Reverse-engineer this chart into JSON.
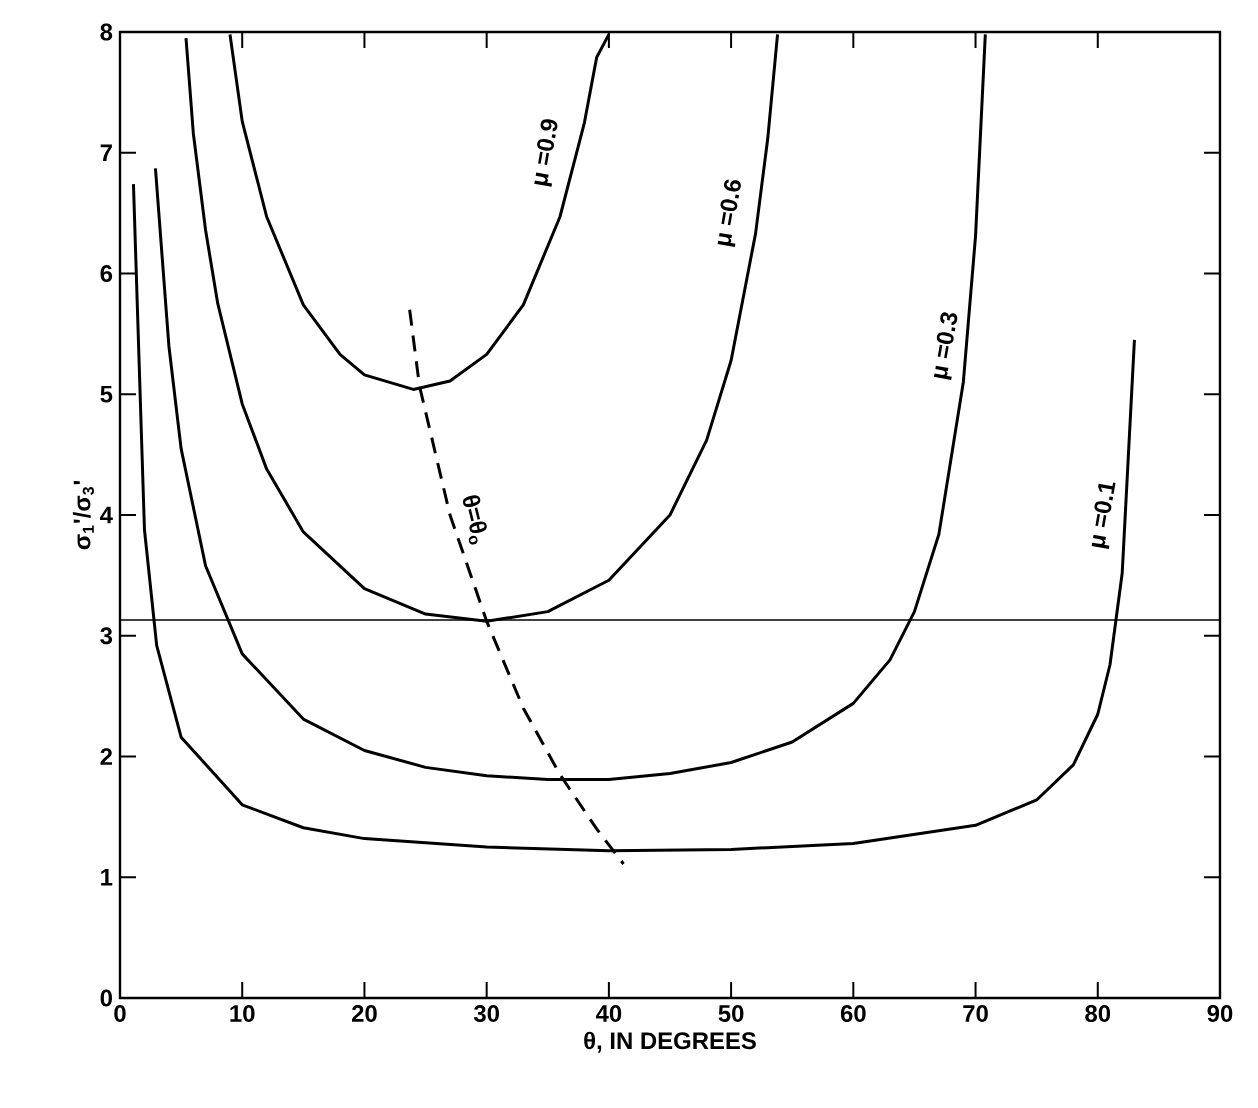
{
  "chart_data": {
    "type": "line",
    "xlabel": "θ, IN DEGREES",
    "ylabel": "σ$_{1}$'/σ$_{3}$'",
    "xlim": [
      0,
      90
    ],
    "ylim": [
      0,
      8
    ],
    "xticks": [
      0,
      10,
      20,
      30,
      40,
      50,
      60,
      70,
      80,
      90
    ],
    "yticks": [
      0,
      1,
      2,
      3,
      4,
      5,
      6,
      7,
      8
    ],
    "series": [
      {
        "color": "#000000",
        "x": [
          1.1,
          2,
          3,
          5,
          10,
          15,
          20,
          30,
          40,
          50,
          60,
          70,
          75,
          78,
          80,
          81,
          82,
          83
        ],
        "values": [
          6.74,
          3.88,
          2.92,
          2.16,
          1.6,
          1.41,
          1.32,
          1.25,
          1.22,
          1.23,
          1.28,
          1.43,
          1.64,
          1.93,
          2.35,
          2.76,
          3.52,
          5.45
        ]
      },
      {
        "color": "#000000",
        "x": [
          2.9,
          4,
          5,
          7,
          10,
          15,
          20,
          25,
          30,
          35,
          40,
          45,
          50,
          55,
          60,
          63,
          65,
          67,
          69,
          70,
          70.8
        ],
        "values": [
          6.87,
          5.4,
          4.55,
          3.58,
          2.85,
          2.31,
          2.05,
          1.91,
          1.84,
          1.81,
          1.81,
          1.86,
          1.95,
          2.12,
          2.44,
          2.8,
          3.2,
          3.84,
          5.1,
          6.31,
          7.98
        ]
      },
      {
        "color": "#000000",
        "x": [
          5.4,
          6,
          7,
          8,
          10,
          12,
          15,
          20,
          25,
          30,
          35,
          40,
          45,
          48,
          50,
          52,
          53,
          53.8
        ],
        "values": [
          7.95,
          7.16,
          6.36,
          5.75,
          4.92,
          4.38,
          3.86,
          3.39,
          3.18,
          3.12,
          3.2,
          3.46,
          4.0,
          4.62,
          5.28,
          6.33,
          7.12,
          7.98
        ]
      },
      {
        "color": "#000000",
        "x": [
          9,
          10,
          12,
          15,
          18,
          20,
          24,
          27,
          30,
          33,
          36,
          38,
          39,
          40
        ],
        "values": [
          7.98,
          7.26,
          6.47,
          5.74,
          5.33,
          5.16,
          5.04,
          5.11,
          5.33,
          5.74,
          6.47,
          7.25,
          7.79,
          7.98
        ]
      },
      {
        "color": "#000000",
        "line_style": "dashed",
        "x": [
          23.7,
          24.5,
          27,
          30,
          33,
          36,
          39,
          41.2
        ],
        "values": [
          5.7,
          5.07,
          4.0,
          3.12,
          2.4,
          1.85,
          1.4,
          1.11
        ]
      }
    ],
    "ref_lines": [
      {
        "axis": "y",
        "value": 3.13,
        "color": "#000000"
      }
    ],
    "annotations": [
      {
        "text": "μ =0.9",
        "x": 34.9,
        "y": 7.0
      },
      {
        "text": "μ =0.6",
        "x": 49.9,
        "y": 6.5
      },
      {
        "text": "μ =0.3",
        "x": 67.6,
        "y": 5.4
      },
      {
        "text": "μ =0.1",
        "x": 80.5,
        "y": 4.0
      },
      {
        "text": "θ=θ$_{o}$",
        "x": 29.0,
        "y": 3.96
      }
    ]
  }
}
